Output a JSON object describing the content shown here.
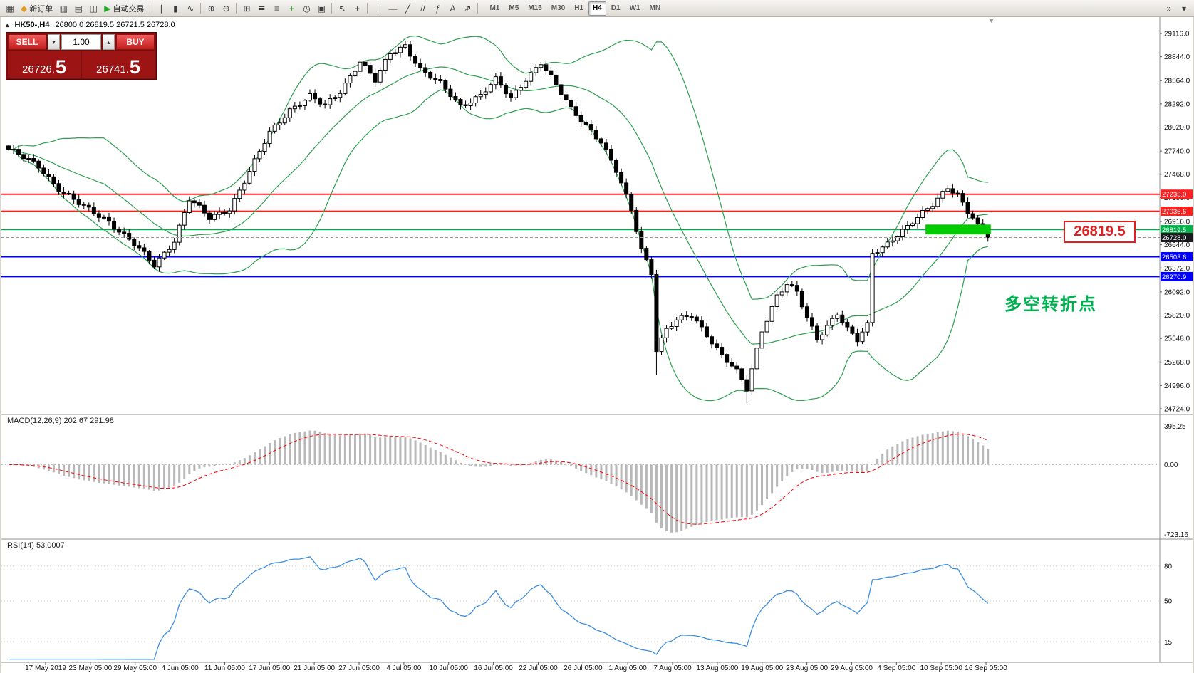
{
  "toolbar": {
    "buttons": [
      {
        "name": "new-chart-button",
        "glyph": "▦"
      },
      {
        "name": "new-order-button",
        "glyph": "◆",
        "glyph_color": "#e39c1e",
        "label": "新订单"
      },
      {
        "name": "chart-windows-button",
        "glyph": "▥"
      },
      {
        "name": "market-watch-button",
        "glyph": "▤"
      },
      {
        "name": "data-window-button",
        "glyph": "◫"
      },
      {
        "name": "autotrade-button",
        "glyph": "▶",
        "glyph_color": "#1faa1f",
        "label": "自动交易"
      },
      {
        "type": "sep"
      },
      {
        "name": "bar-chart-button",
        "glyph": "∥"
      },
      {
        "name": "candlestick-chart-button",
        "glyph": "▮"
      },
      {
        "name": "line-chart-button",
        "glyph": "∿"
      },
      {
        "type": "sep"
      },
      {
        "name": "zoom-in-button",
        "glyph": "⊕"
      },
      {
        "name": "zoom-out-button",
        "glyph": "⊖"
      },
      {
        "type": "sep"
      },
      {
        "name": "tile-windows-button",
        "glyph": "⊞"
      },
      {
        "name": "arrange-windows-button",
        "glyph": "≣"
      },
      {
        "name": "auto-arrange-button",
        "glyph": "≡"
      },
      {
        "name": "add-indicator-button",
        "glyph": "+",
        "glyph_color": "#1faa1f"
      },
      {
        "name": "period-button",
        "glyph": "◷"
      },
      {
        "name": "templates-button",
        "glyph": "▣"
      },
      {
        "type": "sep"
      },
      {
        "name": "cursor-button",
        "glyph": "↖"
      },
      {
        "name": "crosshair-button",
        "glyph": "+"
      },
      {
        "type": "sep"
      },
      {
        "name": "vertical-line-button",
        "glyph": "∣"
      },
      {
        "name": "horizontal-line-button",
        "glyph": "―"
      },
      {
        "name": "trendline-button",
        "glyph": "╱"
      },
      {
        "name": "channel-button",
        "glyph": "//"
      },
      {
        "name": "fibonacci-button",
        "glyph": "ƒ"
      },
      {
        "name": "text-button",
        "glyph": "A"
      },
      {
        "name": "arrows-button",
        "glyph": "⇗"
      },
      {
        "type": "sep"
      }
    ],
    "timeframes": [
      "M1",
      "M5",
      "M15",
      "M30",
      "H1",
      "H4",
      "D1",
      "W1",
      "MN"
    ],
    "active_timeframe": "H4",
    "right_icons": [
      {
        "name": "toolbar-overflow-button",
        "glyph": "»"
      },
      {
        "name": "toolbar-options-button",
        "glyph": "▾"
      }
    ]
  },
  "chart_header": {
    "toggle_glyph": "▴",
    "symbol_title": "HK50-,H4",
    "ohlc_text": "26800.0 26819.5 26721.5 26728.0"
  },
  "trade_panel": {
    "sell_label": "SELL",
    "buy_label": "BUY",
    "volume": "1.00",
    "volume_down_glyph": "▾",
    "volume_up_glyph": "▴",
    "sell_price_main": "26726.",
    "sell_price_big": "5",
    "buy_price_main": "26741.",
    "buy_price_big": "5"
  },
  "indicators": {
    "macd_label": "MACD(12,26,9) 202.67 291.98",
    "rsi_label": "RSI(14) 53.0007"
  },
  "annotations": {
    "big_price_label": "26819.5",
    "turning_point_text": "多空转折点"
  },
  "chart_data": {
    "type": "candlestick+indicators",
    "symbol": "HK50-",
    "timeframe": "H4",
    "price_range": {
      "top": 29116.0,
      "bottom": 24724.0
    },
    "price_axis_ticks": [
      29116.0,
      28844.0,
      28564.0,
      28292.0,
      28020.0,
      27740.0,
      27468.0,
      27196.0,
      26916.0,
      26644.0,
      26372.0,
      26092.0,
      25820.0,
      25548.0,
      25268.0,
      24996.0,
      24724.0
    ],
    "candle_count": 196,
    "close_anchors": [
      [
        0,
        27760
      ],
      [
        6,
        27560
      ],
      [
        10,
        27300
      ],
      [
        15,
        27080
      ],
      [
        20,
        26920
      ],
      [
        25,
        26650
      ],
      [
        29,
        26400
      ],
      [
        33,
        26700
      ],
      [
        36,
        27180
      ],
      [
        40,
        26950
      ],
      [
        44,
        27070
      ],
      [
        48,
        27500
      ],
      [
        52,
        27950
      ],
      [
        56,
        28230
      ],
      [
        60,
        28380
      ],
      [
        63,
        28260
      ],
      [
        66,
        28440
      ],
      [
        70,
        28800
      ],
      [
        73,
        28560
      ],
      [
        76,
        28880
      ],
      [
        79,
        28980
      ],
      [
        82,
        28700
      ],
      [
        86,
        28520
      ],
      [
        90,
        28270
      ],
      [
        94,
        28400
      ],
      [
        97,
        28570
      ],
      [
        100,
        28350
      ],
      [
        103,
        28590
      ],
      [
        106,
        28780
      ],
      [
        109,
        28500
      ],
      [
        112,
        28230
      ],
      [
        115,
        28050
      ],
      [
        118,
        27850
      ],
      [
        121,
        27500
      ],
      [
        124,
        27050
      ],
      [
        126,
        26600
      ],
      [
        128,
        26330
      ],
      [
        129,
        25420
      ],
      [
        131,
        25650
      ],
      [
        133,
        25750
      ],
      [
        136,
        25820
      ],
      [
        139,
        25600
      ],
      [
        142,
        25350
      ],
      [
        145,
        25150
      ],
      [
        147,
        24950
      ],
      [
        150,
        25650
      ],
      [
        153,
        26050
      ],
      [
        155,
        26180
      ],
      [
        157,
        26080
      ],
      [
        159,
        25780
      ],
      [
        161,
        25550
      ],
      [
        163,
        25700
      ],
      [
        165,
        25850
      ],
      [
        167,
        25650
      ],
      [
        169,
        25520
      ],
      [
        171,
        25700
      ],
      [
        172,
        26550
      ],
      [
        174,
        26620
      ],
      [
        176,
        26720
      ],
      [
        178,
        26800
      ],
      [
        181,
        26950
      ],
      [
        184,
        27120
      ],
      [
        187,
        27330
      ],
      [
        189,
        27230
      ],
      [
        191,
        27020
      ],
      [
        193,
        26880
      ],
      [
        195,
        26728
      ]
    ],
    "wick_overrides": [
      {
        "index": 79,
        "high": 29030
      },
      {
        "index": 129,
        "low": 25120
      },
      {
        "index": 147,
        "low": 24790
      }
    ],
    "current_price": 26728.0,
    "current_price_label": "26728.0",
    "current_price_label_bg": "#181a20",
    "hlines": [
      {
        "price": 27235.0,
        "label": "27235.0",
        "color": "#ff1f1f",
        "width": 2
      },
      {
        "price": 27035.6,
        "label": "27035.6",
        "color": "#ff1f1f",
        "width": 2
      },
      {
        "price": 26819.5,
        "label": "26819.5",
        "color": "#00b14a",
        "width": 1.5
      },
      {
        "price": 26503.6,
        "label": "26503.6",
        "color": "#0000ff",
        "width": 2
      },
      {
        "price": 26270.9,
        "label": "26270.9",
        "color": "#0000ff",
        "width": 2
      }
    ],
    "highlight_rect": {
      "start_index": 183,
      "end_index": 196,
      "price_top": 26880,
      "price_bottom": 26765,
      "color": "#00cc00"
    },
    "bollinger": {
      "period": 20,
      "deviation": 2,
      "color": "#2e9e4f"
    },
    "macd": {
      "fast": 12,
      "slow": 26,
      "signal_period": 9,
      "scale_max": 395.25,
      "scale_min": -723.16,
      "axis_labels": [
        "395.25",
        "0.00",
        "-723.16"
      ],
      "histogram_color": "#b8b8b8",
      "signal_color": "#ff0000"
    },
    "rsi": {
      "period": 14,
      "scale": [
        0,
        100
      ],
      "levels": [
        80,
        50,
        15
      ],
      "color": "#3e8ede"
    },
    "dates": [
      "17 May 2019",
      "23 May 05:00",
      "29 May 05:00",
      "4 Jun 05:00",
      "11 Jun 05:00",
      "17 Jun 05:00",
      "21 Jun 05:00",
      "27 Jun 05:00",
      "4 Jul 05:00",
      "10 Jul 05:00",
      "16 Jul 05:00",
      "22 Jul 05:00",
      "26 Jul 05:00",
      "1 Aug 05:00",
      "7 Aug 05:00",
      "13 Aug 05:00",
      "19 Aug 05:00",
      "23 Aug 05:00",
      "29 Aug 05:00",
      "4 Sep 05:00",
      "10 Sep 05:00",
      "16 Sep 05:00"
    ]
  }
}
